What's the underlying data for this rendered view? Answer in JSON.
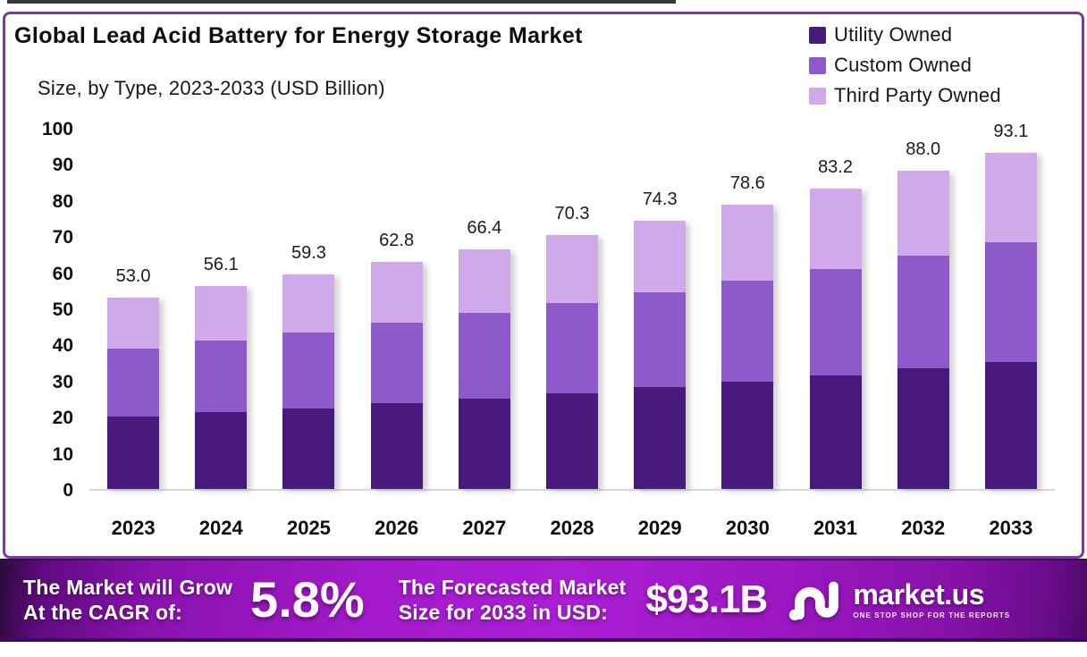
{
  "chart_data": {
    "type": "bar",
    "stacked": true,
    "title": "Global Lead Acid Battery for Energy Storage Market",
    "subtitle": "Size, by Type, 2023-2033 (USD Billion)",
    "categories": [
      "2023",
      "2024",
      "2025",
      "2026",
      "2027",
      "2028",
      "2029",
      "2030",
      "2031",
      "2032",
      "2033"
    ],
    "series": [
      {
        "name": "Utility Owned",
        "color": "#481a7e",
        "values": [
          20.0,
          21.2,
          22.4,
          23.7,
          25.1,
          26.6,
          28.1,
          29.7,
          31.5,
          33.3,
          35.2
        ]
      },
      {
        "name": "Custom Owned",
        "color": "#8d59cb",
        "values": [
          18.8,
          19.9,
          21.0,
          22.3,
          23.6,
          25.0,
          26.4,
          27.9,
          29.5,
          31.2,
          33.0
        ]
      },
      {
        "name": "Third Party Owned",
        "color": "#cfa9ea",
        "values": [
          14.2,
          15.0,
          15.9,
          16.8,
          17.7,
          18.7,
          19.8,
          21.0,
          22.2,
          23.5,
          24.9
        ]
      }
    ],
    "totals": [
      53.0,
      56.1,
      59.3,
      62.8,
      66.4,
      70.3,
      74.3,
      78.6,
      83.2,
      88.0,
      93.1
    ],
    "total_labels": [
      "53.0",
      "56.1",
      "59.3",
      "62.8",
      "66.4",
      "70.3",
      "74.3",
      "78.6",
      "83.2",
      "88.0",
      "93.1"
    ],
    "xlabel": "",
    "ylabel": "",
    "ylim": [
      0,
      100
    ],
    "yticks": [
      0,
      10,
      20,
      30,
      40,
      50,
      60,
      70,
      80,
      90,
      100
    ],
    "grid": false,
    "legend_position": "top-right"
  },
  "banner": {
    "growth_label_line1": "The Market will Grow",
    "growth_label_line2": "At the CAGR of:",
    "cagr_value": "5.8%",
    "forecast_label_line1": "The Forecasted Market",
    "forecast_label_line2": "Size for 2033 in USD:",
    "forecast_value": "$93.1B",
    "brand_name": "market.us",
    "brand_tagline": "ONE STOP SHOP FOR THE REPORTS"
  },
  "colors": {
    "panel_border": "#7b3b99",
    "banner_start": "#2a0b3a",
    "banner_mid": "#a91dd3",
    "banner_end": "#4d0868"
  }
}
